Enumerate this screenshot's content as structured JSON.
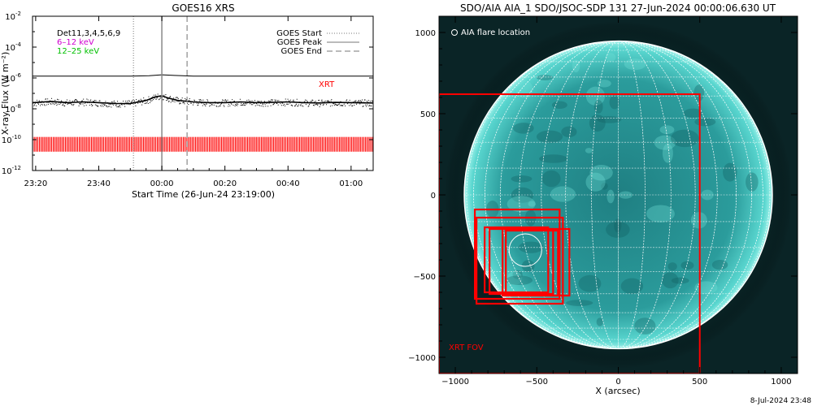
{
  "chart_data": [
    {
      "type": "line",
      "title": "GOES16 XRS",
      "xlabel": "Start Time (26-Jun-24 23:19:00)",
      "ylabel": "X-ray Flux (W m⁻²)",
      "y_scale": "log",
      "ylim": [
        1e-12,
        0.01
      ],
      "y_ticks": [
        {
          "value": 0.01,
          "base": "10",
          "exp": "-2"
        },
        {
          "value": 0.0001,
          "base": "10",
          "exp": "-4"
        },
        {
          "value": 1e-06,
          "base": "10",
          "exp": "-6"
        },
        {
          "value": 1e-08,
          "base": "10",
          "exp": "-8"
        },
        {
          "value": 1e-10,
          "base": "10",
          "exp": "-10"
        },
        {
          "value": 1e-12,
          "base": "10",
          "exp": "-12"
        }
      ],
      "x_range_min": [
        -1,
        107
      ],
      "x_ticks": [
        {
          "min": 0,
          "label": "23:20"
        },
        {
          "min": 20,
          "label": "23:40"
        },
        {
          "min": 40,
          "label": "00:00"
        },
        {
          "min": 60,
          "label": "00:20"
        },
        {
          "min": 80,
          "label": "00:40"
        },
        {
          "min": 100,
          "label": "01:00"
        }
      ],
      "channel_labels": [
        {
          "text": "Det11,3,4,5,6,9",
          "color": "#000000"
        },
        {
          "text": "6–12 keV",
          "color": "#d000d0"
        },
        {
          "text": "12–25 keV",
          "color": "#00c000"
        }
      ],
      "legend": [
        {
          "label": "GOES Start",
          "style": "dotted"
        },
        {
          "label": "GOES Peak",
          "style": "solid"
        },
        {
          "label": "GOES End",
          "style": "dashed"
        }
      ],
      "legend_position": "top-right",
      "event_lines_min": {
        "start": 31,
        "peak": 40,
        "end": 48
      },
      "series": [
        {
          "name": "long",
          "color": "#000000",
          "x": [
            -1,
            10,
            20,
            30,
            36,
            40,
            44,
            50,
            60,
            70,
            80,
            90,
            100,
            107
          ],
          "y": [
            1.3e-06,
            1.3e-06,
            1.3e-06,
            1.3e-06,
            1.4e-06,
            1.6e-06,
            1.45e-06,
            1.3e-06,
            1.3e-06,
            1.3e-06,
            1.3e-06,
            1.3e-06,
            1.3e-06,
            1.3e-06
          ]
        },
        {
          "name": "short",
          "color": "#000000",
          "x": [
            -1,
            5,
            10,
            15,
            20,
            25,
            30,
            35,
            38,
            40,
            42,
            45,
            50,
            55,
            60,
            65,
            70,
            75,
            80,
            85,
            90,
            95,
            100,
            107
          ],
          "y": [
            2.5e-08,
            3e-08,
            2.5e-08,
            2.8e-08,
            2.5e-08,
            2.2e-08,
            2.2e-08,
            3.5e-08,
            6e-08,
            7e-08,
            5e-08,
            3.5e-08,
            2.8e-08,
            2.5e-08,
            2.5e-08,
            2.8e-08,
            2.5e-08,
            2.6e-08,
            2.8e-08,
            2.5e-08,
            2.4e-08,
            2.6e-08,
            2.5e-08,
            2.4e-08
          ]
        }
      ],
      "xrt_label": "XRT",
      "xrt_color": "#ff0000",
      "xrt_level": 5e-11
    },
    {
      "type": "image",
      "title": "SDO/AIA AIA_1 SDO/JSOC-SDP 131 27-Jun-2024 00:00:06.630 UT",
      "xlabel": "X (arcsec)",
      "ylabel": "",
      "xlim": [
        -1100,
        1100
      ],
      "ylim": [
        -1100,
        1100
      ],
      "x_ticks": [
        -1000,
        -500,
        0,
        500,
        1000
      ],
      "y_ticks": [
        -1000,
        -500,
        0,
        500,
        1000
      ],
      "solar_radius_arcsec": 945,
      "legend": [
        {
          "label": "AIA flare location",
          "symbol": "circle"
        }
      ],
      "flare_location_arcsec": {
        "x": -570,
        "y": -340
      },
      "xrt_fov_label": "XRT FOV",
      "xrt_fov_arcsec": {
        "x0": -1100,
        "x1": 500,
        "y0": -1100,
        "y1": 620
      },
      "small_fov_boxes_arcsec": [
        {
          "x0": -880,
          "x1": -360,
          "y0": -640,
          "y1": -90
        },
        {
          "x0": -870,
          "x1": -340,
          "y0": -670,
          "y1": -140
        },
        {
          "x0": -820,
          "x1": -430,
          "y0": -600,
          "y1": -200
        },
        {
          "x0": -790,
          "x1": -400,
          "y0": -610,
          "y1": -210
        },
        {
          "x0": -710,
          "x1": -300,
          "y0": -620,
          "y1": -210
        },
        {
          "x0": -690,
          "x1": -370,
          "y0": -620,
          "y1": -220
        }
      ],
      "disk_color": "#2a9a9a",
      "grid_color": "#ffffff",
      "box_color": "#ff0000"
    }
  ],
  "footer": {
    "timestamp": "8-Jul-2024 23:48"
  }
}
